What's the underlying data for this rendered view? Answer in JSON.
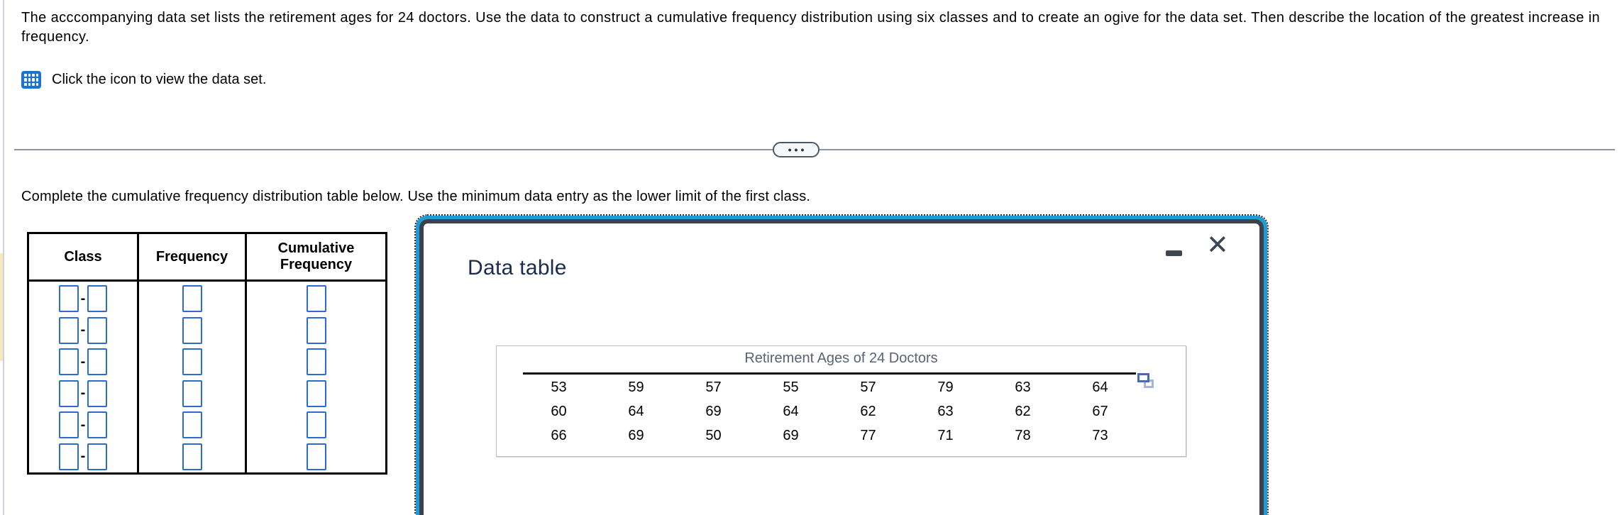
{
  "problem": {
    "statement": "The acccompanying data set lists the retirement ages for 24 doctors. Use the data to construct a cumulative frequency distribution using six classes and to create an ogive for the data set. Then describe the location of the greatest increase in frequency.",
    "dataset_hint": "Click the icon to view the data set."
  },
  "divider": {
    "ellipsis_label": "•••"
  },
  "task_instruction": "Complete the cumulative frequency distribution table below. Use the minimum data entry as the lower limit of the first class.",
  "answer_table": {
    "headers": [
      "Class",
      "Frequency",
      "Cumulative Frequency"
    ],
    "row_count": 6,
    "class_separator": "-"
  },
  "data_dialog": {
    "title": "Data table",
    "close_icon": "✕",
    "dataset_title": "Retirement Ages of 24 Doctors",
    "rows": [
      [
        "53",
        "59",
        "57",
        "55",
        "57",
        "79",
        "63",
        "64"
      ],
      [
        "60",
        "64",
        "69",
        "64",
        "62",
        "63",
        "62",
        "67"
      ],
      [
        "66",
        "69",
        "50",
        "69",
        "77",
        "71",
        "78",
        "73"
      ]
    ]
  },
  "icons": {
    "dataset_icon": "table-grid-icon",
    "ellipsis_icon": "ellipsis-pill-icon",
    "minimize_icon": "minimize-dash-icon",
    "close_icon": "close-x-icon",
    "copy_icon": "copy-data-icon"
  },
  "colors": {
    "accent_blue": "#1a73d0",
    "input_border_blue": "#2e6bd0",
    "dialog_cyan": "#1f9cd6",
    "dialog_frame": "#3b424c",
    "title_navy": "#1b2b4d",
    "muted_slate": "#5a6373",
    "divider_gray": "#8b93a2"
  }
}
